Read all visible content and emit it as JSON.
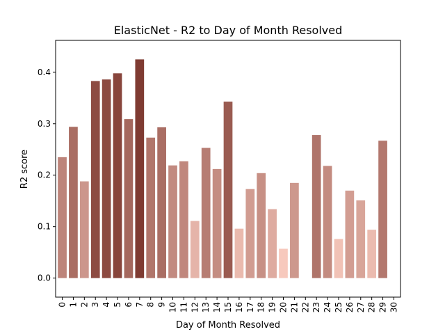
{
  "chart_data": {
    "type": "bar",
    "title": "ElasticNet - R2 to Day of Month Resolved",
    "xlabel": "Day of Month Resolved",
    "ylabel": "R2 score",
    "categories": [
      "0",
      "1",
      "2",
      "3",
      "4",
      "5",
      "6",
      "7",
      "8",
      "9",
      "10",
      "11",
      "12",
      "13",
      "14",
      "15",
      "16",
      "17",
      "18",
      "19",
      "20",
      "21",
      "22",
      "23",
      "24",
      "25",
      "26",
      "27",
      "28",
      "29",
      "30"
    ],
    "values": [
      0.235,
      0.294,
      0.188,
      0.383,
      0.386,
      0.398,
      0.309,
      0.425,
      0.273,
      0.293,
      0.219,
      0.227,
      0.111,
      0.253,
      0.212,
      0.343,
      0.096,
      0.173,
      0.204,
      0.134,
      0.057,
      0.185,
      null,
      0.278,
      0.218,
      0.076,
      0.17,
      0.151,
      0.094,
      0.267,
      null
    ],
    "yticks": [
      "0.0",
      "0.1",
      "0.2",
      "0.3",
      "0.4"
    ],
    "ylim": [
      -0.037,
      0.462
    ],
    "xlim": [
      -0.6,
      30.6
    ],
    "grid": false,
    "color_ramp": [
      "#f7c9bd",
      "#7f3b32"
    ]
  }
}
